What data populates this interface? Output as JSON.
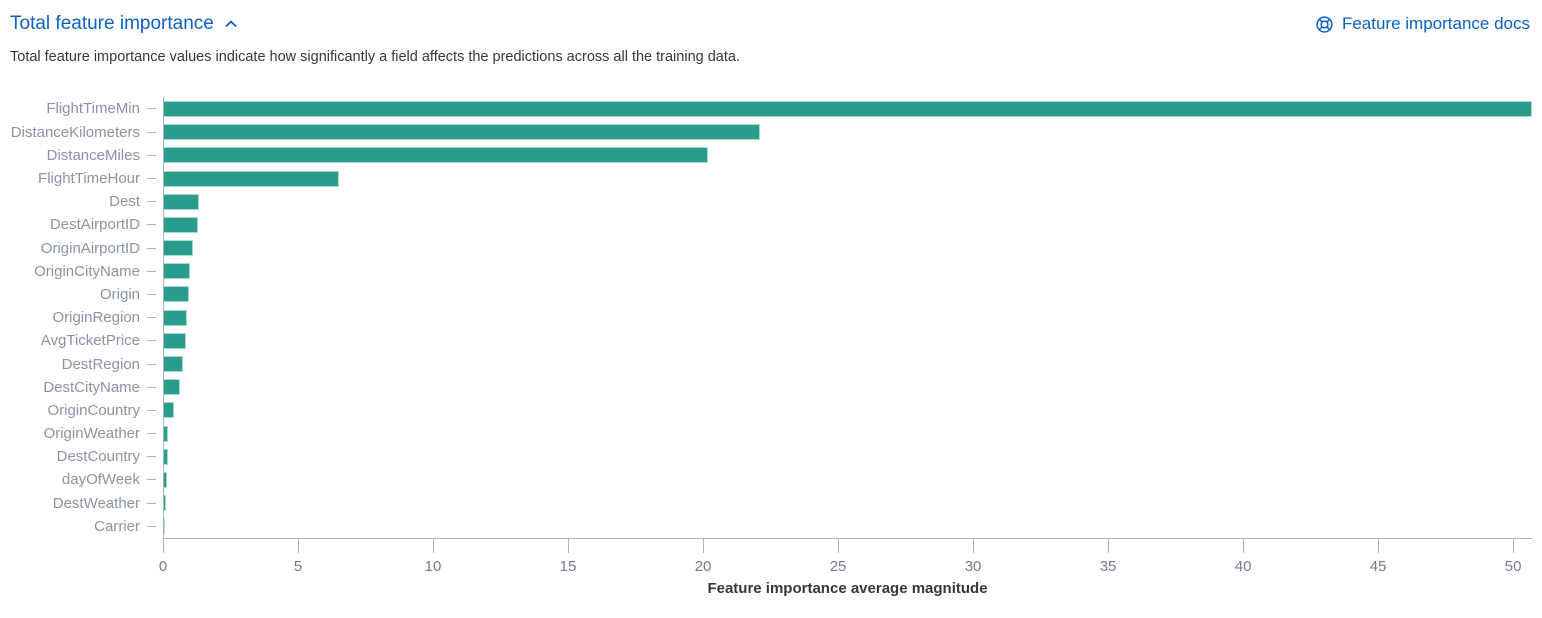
{
  "header": {
    "title": "Total feature importance",
    "docs_link_label": "Feature importance docs",
    "icons": {
      "collapse": "chevron-up-icon",
      "docs": "life-ring-icon"
    }
  },
  "description": "Total feature importance values indicate how significantly a field affects the predictions across all the training data.",
  "colors": {
    "bar": "#2a9c8b",
    "bar_border": "#a3dbce",
    "link_blue": "#0b61c5",
    "axis_line": "#aab3c3",
    "y_label": "#8a92a5",
    "x_tick_label": "#727c90",
    "text": "#343741"
  },
  "chart_data": {
    "type": "bar",
    "orientation": "horizontal",
    "title": "Total feature importance",
    "xlabel": "Feature importance average magnitude",
    "ylabel": "",
    "categories": [
      "FlightTimeMin",
      "DistanceKilometers",
      "DistanceMiles",
      "FlightTimeHour",
      "Dest",
      "DestAirportID",
      "OriginAirportID",
      "OriginCityName",
      "Origin",
      "OriginRegion",
      "AvgTicketPrice",
      "DestRegion",
      "DestCityName",
      "OriginCountry",
      "OriginWeather",
      "DestCountry",
      "dayOfWeek",
      "DestWeather",
      "Carrier"
    ],
    "values": [
      50.7,
      22.1,
      20.2,
      6.5,
      1.35,
      1.3,
      1.1,
      1.0,
      0.97,
      0.9,
      0.85,
      0.75,
      0.63,
      0.42,
      0.2,
      0.17,
      0.16,
      0.11,
      0.05
    ],
    "xticks": [
      0,
      5,
      10,
      15,
      20,
      25,
      30,
      35,
      40,
      45,
      50
    ],
    "xlim": [
      0,
      50.7
    ],
    "grid": false,
    "legend": false
  }
}
